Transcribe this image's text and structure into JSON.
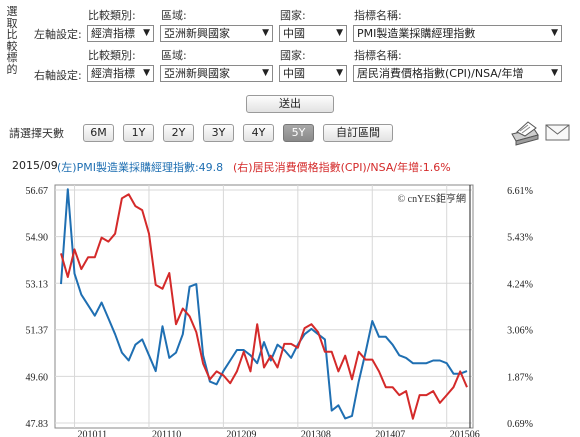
{
  "form": {
    "vertical_label": "選取比較標的",
    "left_axis_label": "左軸設定:",
    "right_axis_label": "右軸設定:",
    "field_labels": [
      "比較類別:",
      "區域:",
      "國家:",
      "指標名稱:"
    ],
    "left": {
      "category": "經濟指標",
      "region": "亞洲新興國家",
      "country": "中國",
      "indicator": "PMI製造業採購經理指數"
    },
    "right": {
      "category": "經濟指標",
      "region": "亞洲新興國家",
      "country": "中國",
      "indicator": "居民消費價格指數(CPI)/NSA/年增"
    },
    "submit_label": "送出"
  },
  "range": {
    "label": "請選擇天數",
    "buttons": [
      "6M",
      "1Y",
      "2Y",
      "3Y",
      "4Y",
      "5Y",
      "自訂區間"
    ],
    "active": "5Y"
  },
  "icons": [
    "printer-icon",
    "email-icon"
  ],
  "header": {
    "date": "2015/09",
    "left_series": "(左)PMI製造業採購經理指數:49.8",
    "right_series": "(右)居民消費價格指數(CPI)/NSA/年增:1.6%",
    "left_color": "#1f6fb2",
    "right_color": "#d42a2a"
  },
  "chart_data": {
    "type": "line",
    "watermark": "© cnYES鉅亨網",
    "x_tick_labels": [
      "201011",
      "201110",
      "201209",
      "201308",
      "201407",
      "201506"
    ],
    "x_ticks": [
      "2010-11",
      "2011-10",
      "2012-09",
      "2013-08",
      "2014-07",
      "2015-06"
    ],
    "x": [
      "2010-09",
      "2010-10",
      "2010-11",
      "2010-12",
      "2011-01",
      "2011-02",
      "2011-03",
      "2011-04",
      "2011-05",
      "2011-06",
      "2011-07",
      "2011-08",
      "2011-09",
      "2011-10",
      "2011-11",
      "2011-12",
      "2012-01",
      "2012-02",
      "2012-03",
      "2012-04",
      "2012-05",
      "2012-06",
      "2012-07",
      "2012-08",
      "2012-09",
      "2012-10",
      "2012-11",
      "2012-12",
      "2013-01",
      "2013-02",
      "2013-03",
      "2013-04",
      "2013-05",
      "2013-06",
      "2013-07",
      "2013-08",
      "2013-09",
      "2013-10",
      "2013-11",
      "2013-12",
      "2014-01",
      "2014-02",
      "2014-03",
      "2014-04",
      "2014-05",
      "2014-06",
      "2014-07",
      "2014-08",
      "2014-09",
      "2014-10",
      "2014-11",
      "2014-12",
      "2015-01",
      "2015-02",
      "2015-03",
      "2015-04",
      "2015-05",
      "2015-06",
      "2015-07",
      "2015-08",
      "2015-09"
    ],
    "y_left_ticks": [
      47.83,
      49.6,
      51.37,
      53.13,
      54.9,
      56.67
    ],
    "y_left_range": [
      47.83,
      56.67
    ],
    "y_right_ticks": [
      "0.69%",
      "1.87%",
      "3.06%",
      "4.24%",
      "5.43%",
      "6.61%"
    ],
    "y_right_values": [
      0.69,
      1.87,
      3.06,
      4.24,
      5.43,
      6.61
    ],
    "y_right_range": [
      0.69,
      6.61
    ],
    "series": [
      {
        "name": "(左)PMI製造業採購經理指數",
        "axis": "left",
        "color": "#1f6fb2",
        "values": [
          53.1,
          56.7,
          53.5,
          52.7,
          52.3,
          51.9,
          52.4,
          51.8,
          51.2,
          50.5,
          50.2,
          50.8,
          51.0,
          50.4,
          49.8,
          51.5,
          50.3,
          50.5,
          51.2,
          53.0,
          53.1,
          50.4,
          49.4,
          49.3,
          49.8,
          50.2,
          50.6,
          50.6,
          50.4,
          50.1,
          50.9,
          50.2,
          50.8,
          50.6,
          50.3,
          50.8,
          51.2,
          51.4,
          51.2,
          51.0,
          48.3,
          48.5,
          48.0,
          48.1,
          49.4,
          50.5,
          51.7,
          51.1,
          51.1,
          50.8,
          50.4,
          50.3,
          50.1,
          50.1,
          50.1,
          50.2,
          50.2,
          50.1,
          49.7,
          49.7,
          49.8
        ]
      },
      {
        "name": "(右)居民消費價格指數(CPI)/NSA/年增",
        "axis": "right",
        "color": "#d42a2a",
        "values": [
          5.0,
          4.4,
          5.1,
          4.6,
          4.9,
          4.9,
          5.4,
          5.3,
          5.5,
          6.4,
          6.5,
          6.2,
          6.1,
          5.5,
          4.2,
          4.1,
          4.5,
          3.2,
          3.6,
          3.4,
          3.0,
          2.2,
          1.8,
          2.0,
          1.9,
          1.7,
          2.0,
          2.5,
          2.0,
          3.2,
          2.1,
          2.4,
          2.1,
          2.7,
          2.7,
          2.6,
          3.1,
          3.2,
          3.0,
          2.5,
          2.5,
          2.0,
          2.4,
          1.8,
          2.5,
          2.3,
          2.3,
          2.0,
          1.6,
          1.6,
          1.4,
          1.5,
          0.8,
          1.4,
          1.4,
          1.5,
          1.2,
          1.4,
          1.6,
          2.0,
          1.6
        ]
      }
    ]
  }
}
